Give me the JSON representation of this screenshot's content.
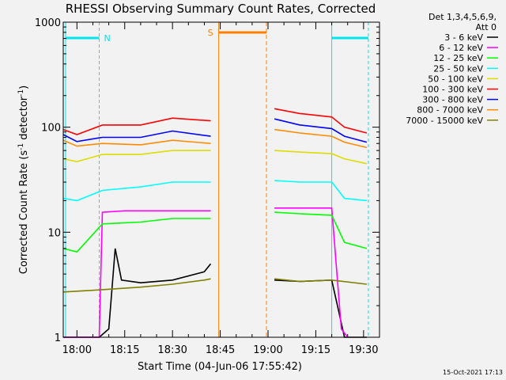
{
  "chart_data": {
    "type": "line",
    "title": "RHESSI Observing Summary Count Rates, Corrected",
    "xlabel": "Start Time (04-Jun-06 17:55:42)",
    "ylabel": "Corrected Count Rate (s⁻¹ detector⁻¹)",
    "ylabel_main": "Corrected Count Rate (s",
    "ylabel_sup1": "-1",
    "ylabel_mid": " detector",
    "ylabel_sup2": "-1",
    "ylabel_end": ")",
    "y_scale": "log",
    "ylim": [
      1,
      1000
    ],
    "xlim": [
      "17:55:42",
      "19:35:00"
    ],
    "x_ticks": [
      "18:00",
      "18:15",
      "18:30",
      "18:45",
      "19:00",
      "19:15",
      "19:30"
    ],
    "y_ticks": [
      "1",
      "10",
      "100",
      "1000"
    ],
    "legend_header": [
      "Det 1,3,4,5,6,9,",
      "Att 0"
    ],
    "footer_timestamp": "15-Oct-2021 17:13",
    "background_color": "#f2f2f2",
    "annotations": {
      "N": {
        "label": "N",
        "color": "#00e5ee",
        "night_intervals": [
          [
            "17:55:42",
            "18:07:00"
          ],
          [
            "19:20:00",
            "19:31:30"
          ]
        ]
      },
      "S": {
        "label": "S",
        "color": "#ff8000",
        "saa_interval": [
          "18:44:30",
          "18:59:30"
        ]
      }
    },
    "data_gaps": [
      [
        "18:43:30",
        "19:01:30"
      ]
    ],
    "series": [
      {
        "name": "3 - 6 keV",
        "color": "#000000",
        "segments": [
          [
            [
              "17:55:42",
              0.8
            ],
            [
              "18:07:00",
              0.8
            ],
            [
              "18:10:00",
              1.2
            ],
            [
              "18:12:00",
              7
            ],
            [
              "18:14:00",
              3.5
            ],
            [
              "18:20:00",
              3.3
            ],
            [
              "18:30:00",
              3.5
            ],
            [
              "18:40:00",
              4.2
            ],
            [
              "18:42:00",
              5
            ]
          ],
          [
            [
              "19:02:00",
              3.5
            ],
            [
              "19:10:00",
              3.4
            ],
            [
              "19:20:00",
              3.5
            ],
            [
              "19:24:00",
              0.8
            ],
            [
              "19:31:00",
              0.8
            ]
          ]
        ]
      },
      {
        "name": "6 - 12 keV",
        "color": "#ff00ff",
        "segments": [
          [
            [
              "17:55:42",
              0.8
            ],
            [
              "18:07:00",
              0.8
            ],
            [
              "18:08:00",
              15.5
            ],
            [
              "18:15:00",
              16
            ],
            [
              "18:30:00",
              16
            ],
            [
              "18:42:00",
              16
            ]
          ],
          [
            [
              "19:02:00",
              17
            ],
            [
              "19:20:00",
              17
            ],
            [
              "19:23:00",
              1.2
            ],
            [
              "19:25:00",
              0.8
            ]
          ]
        ]
      },
      {
        "name": "12 - 25 keV",
        "color": "#00ff00",
        "segments": [
          [
            [
              "17:55:42",
              7
            ],
            [
              "18:00:00",
              6.5
            ],
            [
              "18:08:00",
              12
            ],
            [
              "18:20:00",
              12.5
            ],
            [
              "18:30:00",
              13.5
            ],
            [
              "18:42:00",
              13.5
            ]
          ],
          [
            [
              "19:02:00",
              15.5
            ],
            [
              "19:10:00",
              15
            ],
            [
              "19:20:00",
              14.5
            ],
            [
              "19:24:00",
              8
            ],
            [
              "19:31:00",
              7
            ]
          ]
        ]
      },
      {
        "name": "25 - 50 keV",
        "color": "#00ffff",
        "segments": [
          [
            [
              "17:55:42",
              21
            ],
            [
              "18:00:00",
              20
            ],
            [
              "18:08:00",
              25
            ],
            [
              "18:20:00",
              27
            ],
            [
              "18:30:00",
              30
            ],
            [
              "18:42:00",
              30
            ]
          ],
          [
            [
              "19:02:00",
              31
            ],
            [
              "19:10:00",
              30
            ],
            [
              "19:20:00",
              30
            ],
            [
              "19:24:00",
              21
            ],
            [
              "19:31:00",
              20
            ]
          ]
        ]
      },
      {
        "name": "50 - 100 keV",
        "color": "#dddd00",
        "segments": [
          [
            [
              "17:55:42",
              50
            ],
            [
              "18:00:00",
              47
            ],
            [
              "18:08:00",
              55
            ],
            [
              "18:20:00",
              55
            ],
            [
              "18:30:00",
              60
            ],
            [
              "18:42:00",
              60
            ]
          ],
          [
            [
              "19:02:00",
              60
            ],
            [
              "19:10:00",
              58
            ],
            [
              "19:20:00",
              56
            ],
            [
              "19:24:00",
              50
            ],
            [
              "19:31:00",
              45
            ]
          ]
        ]
      },
      {
        "name": "100 - 300 keV",
        "color": "#ff0000",
        "segments": [
          [
            [
              "17:55:42",
              95
            ],
            [
              "18:00:00",
              85
            ],
            [
              "18:08:00",
              105
            ],
            [
              "18:20:00",
              105
            ],
            [
              "18:30:00",
              122
            ],
            [
              "18:42:00",
              115
            ]
          ],
          [
            [
              "19:02:00",
              150
            ],
            [
              "19:10:00",
              135
            ],
            [
              "19:20:00",
              125
            ],
            [
              "19:24:00",
              100
            ],
            [
              "19:31:00",
              88
            ]
          ]
        ]
      },
      {
        "name": "300 - 800 keV",
        "color": "#0000ff",
        "segments": [
          [
            [
              "17:55:42",
              85
            ],
            [
              "18:00:00",
              73
            ],
            [
              "18:08:00",
              80
            ],
            [
              "18:20:00",
              80
            ],
            [
              "18:30:00",
              92
            ],
            [
              "18:42:00",
              82
            ]
          ],
          [
            [
              "19:02:00",
              120
            ],
            [
              "19:10:00",
              105
            ],
            [
              "19:20:00",
              97
            ],
            [
              "19:24:00",
              82
            ],
            [
              "19:31:00",
              72
            ]
          ]
        ]
      },
      {
        "name": "800 - 7000 keV",
        "color": "#ff8c00",
        "segments": [
          [
            [
              "17:55:42",
              75
            ],
            [
              "18:00:00",
              66
            ],
            [
              "18:08:00",
              70
            ],
            [
              "18:20:00",
              68
            ],
            [
              "18:30:00",
              75
            ],
            [
              "18:42:00",
              70
            ]
          ],
          [
            [
              "19:02:00",
              95
            ],
            [
              "19:10:00",
              88
            ],
            [
              "19:20:00",
              82
            ],
            [
              "19:24:00",
              72
            ],
            [
              "19:31:00",
              64
            ]
          ]
        ]
      },
      {
        "name": "7000 - 15000 keV",
        "color": "#808000",
        "segments": [
          [
            [
              "17:55:42",
              2.7
            ],
            [
              "18:05:00",
              2.8
            ],
            [
              "18:20:00",
              3.0
            ],
            [
              "18:30:00",
              3.2
            ],
            [
              "18:40:00",
              3.5
            ],
            [
              "18:42:00",
              3.6
            ]
          ],
          [
            [
              "19:02:00",
              3.6
            ],
            [
              "19:10:00",
              3.4
            ],
            [
              "19:20:00",
              3.5
            ],
            [
              "19:31:00",
              3.2
            ]
          ]
        ]
      }
    ]
  }
}
